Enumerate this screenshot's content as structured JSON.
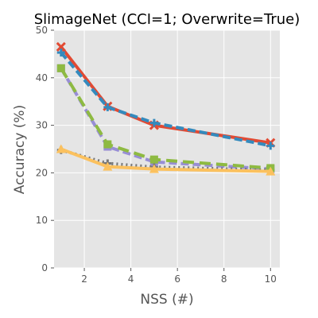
{
  "chart_data": {
    "type": "line",
    "title": "SlimageNet (CCI=1; Overwrite=True)",
    "xlabel": "NSS (#)",
    "ylabel": "Accuracy (%)",
    "xlim": [
      0.7,
      10.4
    ],
    "ylim": [
      0,
      50
    ],
    "xticks": [
      2,
      4,
      6,
      8,
      10
    ],
    "yticks": [
      0,
      10,
      20,
      30,
      40,
      50
    ],
    "grid": true,
    "background": "#e5e5e5",
    "series": [
      {
        "color": "#e24a33",
        "dash": "",
        "marker": "x",
        "x": [
          1,
          3,
          5,
          10
        ],
        "y": [
          46.5,
          34.0,
          30.0,
          26.3
        ]
      },
      {
        "color": "#348abd",
        "dash": "10,5",
        "marker": "plus",
        "x": [
          1,
          3,
          5,
          10
        ],
        "y": [
          45.3,
          33.8,
          30.5,
          25.7
        ]
      },
      {
        "color": "#988ed5",
        "dash": "10,5",
        "marker": "square",
        "x": [
          1,
          3,
          5,
          10
        ],
        "y": [
          42.0,
          25.5,
          22.3,
          20.8
        ]
      },
      {
        "color": "#777777",
        "dash": "2,4",
        "marker": "plus",
        "x": [
          1,
          3,
          5,
          10
        ],
        "y": [
          24.8,
          22.0,
          21.2,
          20.6
        ]
      },
      {
        "color": "#8eba42",
        "dash": "14,7",
        "marker": "square",
        "x": [
          1,
          3,
          5,
          10
        ],
        "y": [
          42.0,
          26.0,
          22.8,
          21.0
        ]
      },
      {
        "color": "#fbc15e",
        "dash": "",
        "marker": "triangle",
        "x": [
          1,
          3,
          5,
          10
        ],
        "y": [
          25.0,
          21.3,
          20.8,
          20.3
        ]
      }
    ]
  }
}
